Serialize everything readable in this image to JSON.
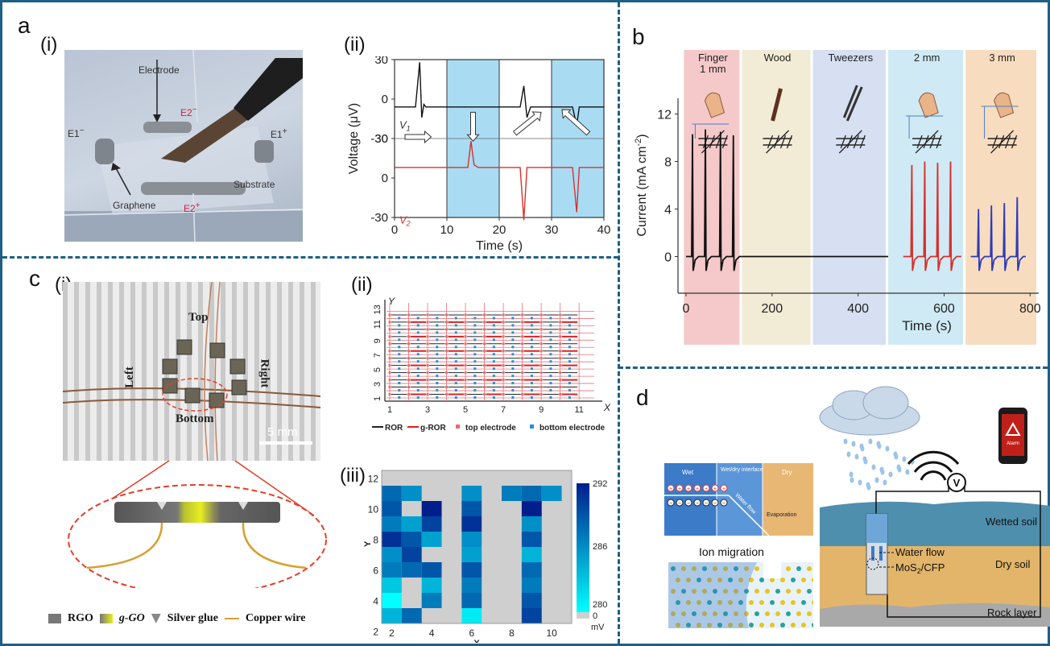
{
  "panels": {
    "a": {
      "letter": "a",
      "sub_i": "(i)",
      "sub_ii": "(ii)",
      "photo_labels": {
        "electrode": "Electrode",
        "e2m": "E2",
        "e2m_sup": "−",
        "e1m": "E1",
        "e1m_sup": "−",
        "e1p": "E1",
        "e1p_sup": "+",
        "substrate": "Substrate",
        "graphene": "Graphene",
        "e2p": "E2",
        "e2p_sup": "+"
      },
      "chart": {
        "ylabel": "Voltage (μV)",
        "xlabel": "Time (s)",
        "x_ticks": [
          "0",
          "10",
          "20",
          "30",
          "40"
        ],
        "y_ticks_top": [
          "30",
          "0",
          "-30"
        ],
        "y_ticks_bottom": [
          "30",
          "0",
          "-30"
        ],
        "v1": "V",
        "v1_sub": "1",
        "v2": "V",
        "v2_sub": "2"
      }
    },
    "b": {
      "letter": "b",
      "columns": [
        "Finger\n1 mm",
        "Wood",
        "Tweezers",
        "2 mm",
        "3 mm"
      ],
      "ylabel": "Current (mA cm",
      "ylabel_sup": "-2",
      "ylabel_end": ")",
      "xlabel": "Time (s)",
      "y_ticks": [
        "0",
        "4",
        "8",
        "12"
      ],
      "x_ticks": [
        "0",
        "200",
        "400",
        "600",
        "800"
      ]
    },
    "c": {
      "letter": "c",
      "sub_i": "(i)",
      "sub_ii": "(ii)",
      "sub_iii": "(iii)",
      "photo_labels": {
        "top": "Top",
        "left": "Left",
        "right": "Right",
        "bottom": "Bottom",
        "scale": "5 mm"
      },
      "legend_i": {
        "rgo": "RGO",
        "ggo": "g-GO",
        "silver": "Silver glue",
        "copper": "Copper wire"
      },
      "grid_ii": {
        "y_axis": "Y",
        "x_axis": "X",
        "y_ticks": [
          "1",
          "3",
          "5",
          "7",
          "9",
          "11",
          "13"
        ],
        "x_ticks": [
          "1",
          "3",
          "5",
          "7",
          "9",
          "11"
        ],
        "legend": [
          "ROR",
          "g-ROR",
          "top electrode",
          "bottom electrode"
        ]
      },
      "heatmap_iii": {
        "y_axis": "Y",
        "x_axis": "X",
        "y_ticks": [
          "2",
          "4",
          "6",
          "8",
          "10",
          "12"
        ],
        "x_ticks": [
          "2",
          "4",
          "6",
          "8",
          "10"
        ],
        "colorbar_ticks": [
          "292",
          "286",
          "280",
          "0"
        ],
        "colorbar_unit": "mV"
      }
    },
    "d": {
      "letter": "d",
      "inset": {
        "wet": "Wet",
        "interface": "Wet/dry\ninterface",
        "dry": "Dry",
        "water_flow": "Water flow",
        "evaporation": "Evaporation"
      },
      "ion_migration": "Ion migration",
      "soil": {
        "wetted": "Wetted soil",
        "dry": "Dry soil",
        "rock": "Rock layer",
        "water_flow": "Water flow",
        "mos2": "MoS",
        "mos2_sub": "2",
        "mos2_end": "/CFP",
        "meter": "V",
        "alarm": "Alarm"
      }
    }
  },
  "chart_data": [
    {
      "type": "line",
      "title": "",
      "xlabel": "Time (s)",
      "ylabel": "Voltage (μV)",
      "xlim": [
        0,
        40
      ],
      "ylim_each": [
        -30,
        30
      ],
      "series": [
        {
          "name": "V1",
          "color": "#111111",
          "x": [
            0,
            4,
            4.8,
            5.2,
            5.6,
            6,
            10,
            14,
            15,
            16,
            20,
            24,
            24.7,
            25.3,
            26,
            30,
            34,
            34.8,
            35.3,
            36,
            40
          ],
          "y": [
            -6,
            -6,
            28,
            -14,
            -4,
            -6,
            -6,
            -6,
            -6,
            -6,
            -6,
            -6,
            10,
            -14,
            -6,
            -6,
            -6,
            -20,
            -6,
            -6,
            -6
          ]
        },
        {
          "name": "V2",
          "color": "#d9302c",
          "x": [
            0,
            10,
            14,
            14.6,
            15.2,
            16,
            20,
            24,
            24.7,
            25.3,
            26,
            30,
            34,
            34.8,
            35.3,
            36,
            40
          ],
          "y": [
            8,
            8,
            8,
            28,
            10,
            8,
            8,
            8,
            -32,
            8,
            8,
            8,
            8,
            -26,
            8,
            8,
            8
          ]
        }
      ]
    },
    {
      "type": "line",
      "title": "",
      "xlabel": "Time (s)",
      "ylabel": "Current (mA cm-2)",
      "xlim": [
        0,
        800
      ],
      "ylim": [
        -2,
        14
      ],
      "categories": [
        "Finger 1 mm",
        "Wood",
        "Tweezers",
        "2 mm",
        "3 mm"
      ],
      "series": [
        {
          "name": "Finger 1 mm",
          "color": "#111111",
          "peaks_x": [
            15,
            45,
            80,
            110
          ],
          "peaks_y": [
            10.3,
            10.7,
            10.5,
            10.2
          ]
        },
        {
          "name": "Wood / Tweezers",
          "color": "#111111",
          "x": [
            130,
            470
          ],
          "y": [
            0,
            0
          ]
        },
        {
          "name": "2 mm",
          "color": "#d9302c",
          "peaks_x": [
            525,
            555,
            585,
            615
          ],
          "peaks_y": [
            7.7,
            8.0,
            7.9,
            8.0
          ]
        },
        {
          "name": "3 mm",
          "color": "#2d3bb8",
          "peaks_x": [
            680,
            710,
            740,
            770
          ],
          "peaks_y": [
            4.0,
            4.3,
            4.5,
            5.0
          ]
        }
      ]
    },
    {
      "type": "heatmap",
      "title": "",
      "xlabel": "X",
      "ylabel": "Y",
      "xlim": [
        1,
        11
      ],
      "ylim": [
        2,
        12
      ],
      "colorbar": [
        280,
        292
      ],
      "cells": [
        {
          "x": 2,
          "y": 11,
          "v": 288
        },
        {
          "x": 3,
          "y": 11,
          "v": 286
        },
        {
          "x": 2,
          "y": 10,
          "v": 289
        },
        {
          "x": 2,
          "y": 9,
          "v": 287
        },
        {
          "x": 2,
          "y": 8,
          "v": 291
        },
        {
          "x": 2,
          "y": 7,
          "v": 286
        },
        {
          "x": 2,
          "y": 6,
          "v": 287
        },
        {
          "x": 2,
          "y": 5,
          "v": 283
        },
        {
          "x": 2,
          "y": 4,
          "v": 280
        },
        {
          "x": 2,
          "y": 3,
          "v": 284
        },
        {
          "x": 3,
          "y": 9,
          "v": 285
        },
        {
          "x": 3,
          "y": 8,
          "v": 289
        },
        {
          "x": 3,
          "y": 7,
          "v": 290
        },
        {
          "x": 3,
          "y": 6,
          "v": 288
        },
        {
          "x": 3,
          "y": 3,
          "v": 288
        },
        {
          "x": 4,
          "y": 10,
          "v": 292
        },
        {
          "x": 4,
          "y": 9,
          "v": 290
        },
        {
          "x": 4,
          "y": 8,
          "v": 285
        },
        {
          "x": 4,
          "y": 6,
          "v": 289
        },
        {
          "x": 4,
          "y": 5,
          "v": 284
        },
        {
          "x": 4,
          "y": 4,
          "v": 287
        },
        {
          "x": 6,
          "y": 11,
          "v": 286
        },
        {
          "x": 6,
          "y": 10,
          "v": 289
        },
        {
          "x": 6,
          "y": 9,
          "v": 291
        },
        {
          "x": 6,
          "y": 8,
          "v": 286
        },
        {
          "x": 6,
          "y": 7,
          "v": 285
        },
        {
          "x": 6,
          "y": 6,
          "v": 289
        },
        {
          "x": 6,
          "y": 5,
          "v": 287
        },
        {
          "x": 6,
          "y": 4,
          "v": 288
        },
        {
          "x": 6,
          "y": 3,
          "v": 281
        },
        {
          "x": 8,
          "y": 11,
          "v": 287
        },
        {
          "x": 9,
          "y": 11,
          "v": 288
        },
        {
          "x": 10,
          "y": 11,
          "v": 286
        },
        {
          "x": 9,
          "y": 10,
          "v": 292
        },
        {
          "x": 9,
          "y": 9,
          "v": 286
        },
        {
          "x": 9,
          "y": 8,
          "v": 289
        },
        {
          "x": 9,
          "y": 7,
          "v": 284
        },
        {
          "x": 9,
          "y": 6,
          "v": 288
        },
        {
          "x": 9,
          "y": 5,
          "v": 287
        },
        {
          "x": 9,
          "y": 4,
          "v": 289
        },
        {
          "x": 9,
          "y": 3,
          "v": 290
        }
      ]
    }
  ]
}
